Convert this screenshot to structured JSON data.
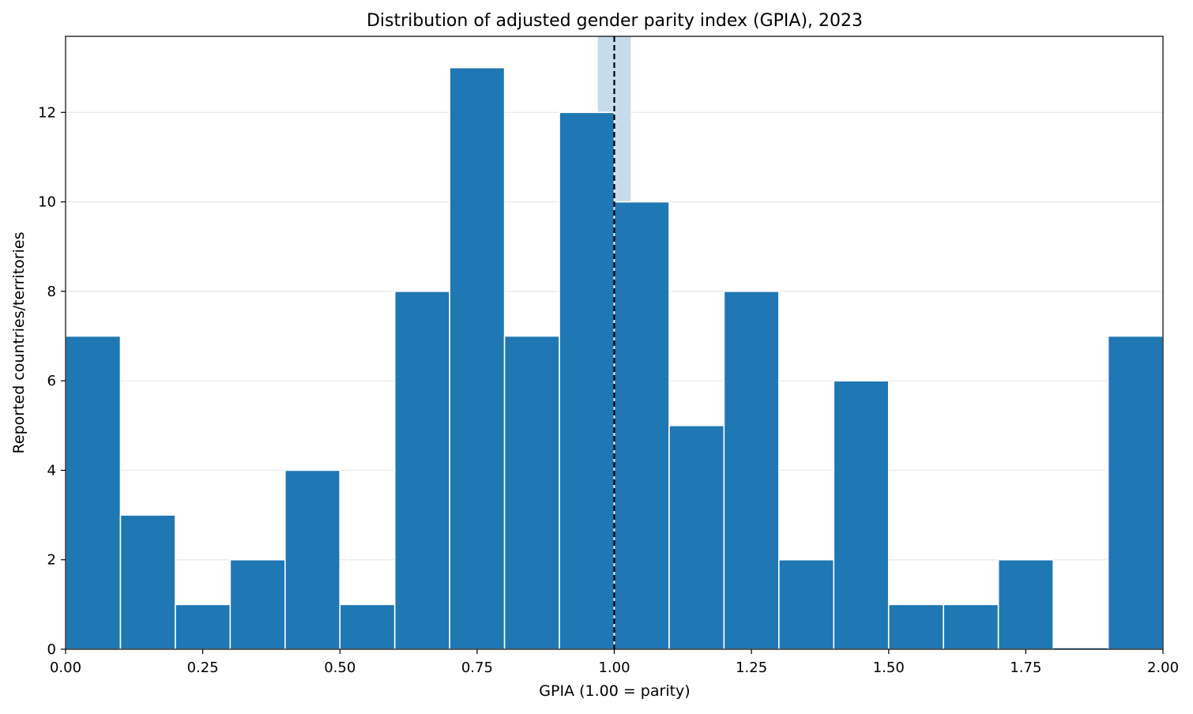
{
  "chart_data": {
    "type": "bar",
    "title": "Distribution of adjusted gender parity index (GPIA), 2023",
    "xlabel": "GPIA (1.00 = parity)",
    "ylabel": "Reported countries/territories",
    "bin_edges": [
      0.0,
      0.1,
      0.2,
      0.3,
      0.4,
      0.5,
      0.6,
      0.7,
      0.8,
      0.9,
      1.0,
      1.1,
      1.2,
      1.3,
      1.4,
      1.5,
      1.6,
      1.7,
      1.8,
      1.9,
      2.0
    ],
    "values": [
      7,
      3,
      1,
      2,
      4,
      1,
      8,
      13,
      7,
      12,
      10,
      5,
      8,
      2,
      6,
      1,
      1,
      2,
      0,
      7
    ],
    "xlim": [
      0,
      2
    ],
    "ylim": [
      0,
      13.7
    ],
    "x_ticks": [
      "0.00",
      "0.25",
      "0.50",
      "0.75",
      "1.00",
      "1.25",
      "1.50",
      "1.75",
      "2.00"
    ],
    "x_tick_values": [
      0,
      0.25,
      0.5,
      0.75,
      1.0,
      1.25,
      1.5,
      1.75,
      2.0
    ],
    "y_ticks": [
      "0",
      "2",
      "4",
      "6",
      "8",
      "10",
      "12"
    ],
    "y_tick_values": [
      0,
      2,
      4,
      6,
      8,
      10,
      12
    ],
    "parity_line": 1.0,
    "parity_band": [
      0.97,
      1.03
    ],
    "grid": "horizontal",
    "colors": {
      "bar": "#1f77b4",
      "bar_edge": "#ffffff",
      "parity_band": "#c6dbec",
      "parity_line": "#000000",
      "grid": "#e8e8e8"
    }
  }
}
